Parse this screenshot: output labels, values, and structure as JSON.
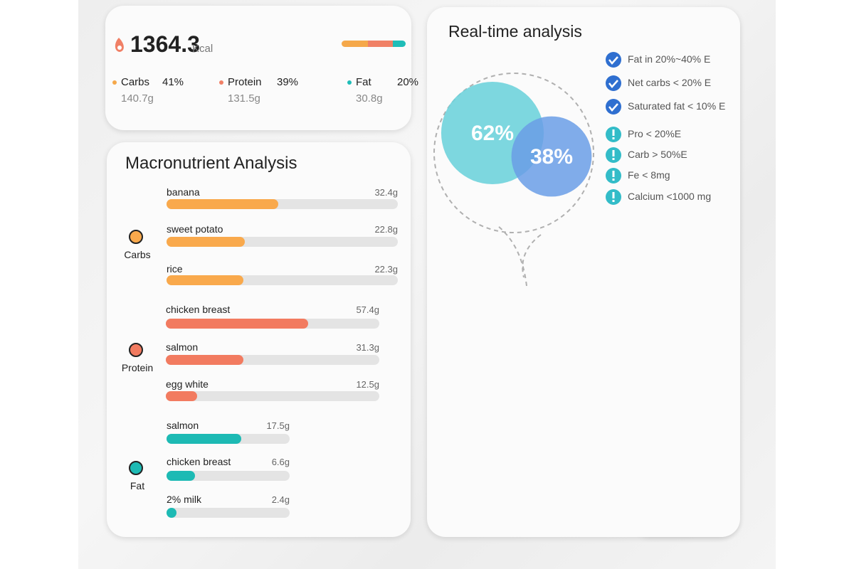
{
  "summary": {
    "calories": "1364.3",
    "unit": "Kcal",
    "macros": [
      {
        "name": "Carbs",
        "percent": {
          "value": 41,
          "label": "41%"
        },
        "grams": "140.7g",
        "color": "#f5a84a"
      },
      {
        "name": "Protein",
        "percent": {
          "value": 39,
          "label": "39%"
        },
        "grams": "131.5g",
        "color": "#f08066"
      },
      {
        "name": "Fat",
        "percent": {
          "value": 20,
          "label": "20%"
        },
        "grams": "30.8g",
        "color": "#1fbdb8"
      }
    ]
  },
  "macronutrient_analysis": {
    "title": "Macronutrient Analysis",
    "groups": [
      {
        "name": "Carbs",
        "color": "#f9a94c",
        "items": [
          {
            "food": "banana",
            "amount": {
              "value": 32.4,
              "label": "32.4g"
            }
          },
          {
            "food": "sweet potato",
            "amount": {
              "value": 22.8,
              "label": "22.8g"
            }
          },
          {
            "food": "rice",
            "amount": {
              "value": 22.3,
              "label": "22.3g"
            }
          }
        ]
      },
      {
        "name": "Protein",
        "color": "#f27b60",
        "items": [
          {
            "food": "chicken breast",
            "amount": {
              "value": 57.4,
              "label": "57.4g"
            }
          },
          {
            "food": "salmon",
            "amount": {
              "value": 31.3,
              "label": "31.3g"
            }
          },
          {
            "food": "egg white",
            "amount": {
              "value": 12.5,
              "label": "12.5g"
            }
          }
        ]
      },
      {
        "name": "Fat",
        "color": "#1dbab4",
        "items": [
          {
            "food": "salmon",
            "amount": {
              "value": 17.5,
              "label": "17.5g"
            }
          },
          {
            "food": "chicken breast",
            "amount": {
              "value": 6.6,
              "label": "6.6g"
            }
          },
          {
            "food": "2% milk",
            "amount": {
              "value": 2.4,
              "label": "2.4g"
            }
          }
        ]
      }
    ]
  },
  "realtime": {
    "title": "Real-time analysis",
    "circles": [
      {
        "value": 62,
        "label": "62%",
        "color": "#6fd3dc"
      },
      {
        "value": 38,
        "label": "38%",
        "color": "#6a9ee6"
      }
    ],
    "checks": [
      {
        "text": "Fat in 20%~40% E",
        "status": "pass"
      },
      {
        "text": "Net carbs < 20% E",
        "status": "pass"
      },
      {
        "text": "Saturated fat < 10% E",
        "status": "pass"
      },
      {
        "text": "Pro < 20%E",
        "status": "warn"
      },
      {
        "text": "Carb > 50%E",
        "status": "warn"
      },
      {
        "text": "Fe < 8mg",
        "status": "warn"
      },
      {
        "text": "Calcium <1000 mg",
        "status": "warn"
      }
    ]
  }
}
